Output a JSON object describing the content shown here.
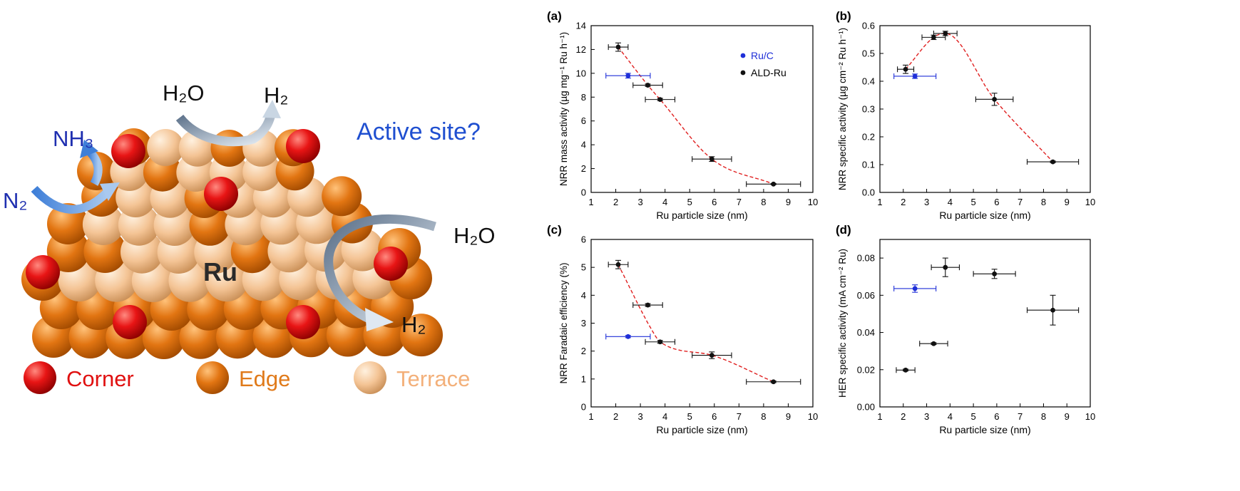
{
  "illustration": {
    "center_label": "Ru",
    "question": "Active site?",
    "species": {
      "nh3": "NH₃",
      "n2": "N₂",
      "h2o_top": "H₂O",
      "h2_top": "H₂",
      "h2o_right": "H₂O",
      "h2_right": "H₂"
    },
    "legend": [
      {
        "label": "Corner",
        "color": "#e01010"
      },
      {
        "label": "Edge",
        "color": "#e07a1a"
      },
      {
        "label": "Terrace",
        "color": "#f3c08e"
      }
    ]
  },
  "colors": {
    "ald": "#111111",
    "ruc": "#1f2fd8",
    "fit": "#e02020",
    "question": "#1f4fd0",
    "reactant": "#1f2fb0"
  },
  "chart_data": [
    {
      "panel": "(a)",
      "type": "scatter",
      "xlabel": "Ru particle size (nm)",
      "ylabel": "NRR mass activity (µg mg⁻¹ Ru h⁻¹)",
      "xlim": [
        1,
        10
      ],
      "ylim": [
        0,
        14
      ],
      "xticks": [
        "1",
        "2",
        "3",
        "4",
        "5",
        "6",
        "7",
        "8",
        "9",
        "10"
      ],
      "yticks": [
        "0",
        "2",
        "4",
        "6",
        "8",
        "10",
        "12",
        "14"
      ],
      "legend": [
        "Ru/C",
        "ALD-Ru"
      ],
      "series": [
        {
          "name": "ALD-Ru",
          "x": [
            2.1,
            3.3,
            3.8,
            5.9,
            8.4
          ],
          "y": [
            12.2,
            9.0,
            7.8,
            2.8,
            0.7
          ],
          "xerr": [
            0.4,
            0.6,
            0.6,
            0.8,
            1.1
          ],
          "yerr": [
            0.35,
            0.1,
            0.1,
            0.2,
            0.05
          ]
        },
        {
          "name": "Ru/C",
          "x": [
            2.5
          ],
          "y": [
            9.8
          ],
          "xerr": [
            0.9
          ],
          "yerr": [
            0.2
          ]
        }
      ],
      "fit": {
        "x": [
          2.1,
          3.3,
          3.8,
          5.9,
          8.4
        ],
        "y": [
          12.2,
          9.0,
          7.8,
          2.8,
          0.7
        ]
      }
    },
    {
      "panel": "(b)",
      "type": "scatter",
      "xlabel": "Ru particle size (nm)",
      "ylabel": "NRR specific activity (µg cm⁻² Ru h⁻¹)",
      "xlim": [
        1,
        10
      ],
      "ylim": [
        0,
        0.6
      ],
      "xticks": [
        "1",
        "2",
        "3",
        "4",
        "5",
        "6",
        "7",
        "8",
        "9",
        "10"
      ],
      "yticks": [
        "0.0",
        "0.1",
        "0.2",
        "0.3",
        "0.4",
        "0.5",
        "0.6"
      ],
      "series": [
        {
          "name": "ALD-Ru",
          "x": [
            2.1,
            3.3,
            3.8,
            5.9,
            8.4
          ],
          "y": [
            0.443,
            0.558,
            0.572,
            0.335,
            0.11
          ],
          "xerr": [
            0.35,
            0.5,
            0.5,
            0.8,
            1.1
          ],
          "yerr": [
            0.015,
            0.008,
            0.008,
            0.022,
            0.003
          ]
        },
        {
          "name": "Ru/C",
          "x": [
            2.5
          ],
          "y": [
            0.418
          ],
          "xerr": [
            0.9
          ],
          "yerr": [
            0.008
          ]
        }
      ],
      "fit": {
        "x": [
          2.1,
          3.3,
          3.8,
          5.9,
          8.4
        ],
        "y": [
          0.443,
          0.558,
          0.572,
          0.335,
          0.11
        ]
      }
    },
    {
      "panel": "(c)",
      "type": "scatter",
      "xlabel": "Ru particle size (nm)",
      "ylabel": "NRR Faradaic efficiency (%)",
      "xlim": [
        1,
        10
      ],
      "ylim": [
        0,
        6
      ],
      "xticks": [
        "1",
        "2",
        "3",
        "4",
        "5",
        "6",
        "7",
        "8",
        "9",
        "10"
      ],
      "yticks": [
        "0",
        "1",
        "2",
        "3",
        "4",
        "5",
        "6"
      ],
      "series": [
        {
          "name": "ALD-Ru",
          "x": [
            2.1,
            3.3,
            3.8,
            5.9,
            8.4
          ],
          "y": [
            5.1,
            3.65,
            2.33,
            1.85,
            0.9
          ],
          "xerr": [
            0.4,
            0.6,
            0.6,
            0.8,
            1.1
          ],
          "yerr": [
            0.15,
            0.05,
            0.05,
            0.12,
            0.03
          ]
        },
        {
          "name": "Ru/C",
          "x": [
            2.5
          ],
          "y": [
            2.52
          ],
          "xerr": [
            0.9
          ],
          "yerr": [
            0.04
          ]
        }
      ],
      "fit": {
        "x": [
          2.1,
          3.5,
          3.8,
          5.9,
          8.4
        ],
        "y": [
          5.1,
          2.7,
          2.33,
          1.85,
          0.9
        ]
      }
    },
    {
      "panel": "(d)",
      "type": "scatter",
      "xlabel": "Ru particle size (nm)",
      "ylabel": "HER specific activity (mA cm⁻² Ru)",
      "xlim": [
        1,
        10
      ],
      "ylim": [
        0,
        0.09
      ],
      "xticks": [
        "1",
        "2",
        "3",
        "4",
        "5",
        "6",
        "7",
        "8",
        "9",
        "10"
      ],
      "yticks": [
        "0.00",
        "0.02",
        "0.04",
        "0.06",
        "0.08"
      ],
      "series": [
        {
          "name": "ALD-Ru",
          "x": [
            2.1,
            3.3,
            3.8,
            5.9,
            8.4
          ],
          "y": [
            0.0198,
            0.034,
            0.075,
            0.0715,
            0.052
          ],
          "xerr": [
            0.4,
            0.6,
            0.6,
            0.9,
            1.1
          ],
          "yerr": [
            0.0005,
            0.0005,
            0.005,
            0.0025,
            0.008
          ]
        },
        {
          "name": "Ru/C",
          "x": [
            2.5
          ],
          "y": [
            0.0636
          ],
          "xerr": [
            0.9
          ],
          "yerr": [
            0.002
          ]
        }
      ],
      "fit": null
    }
  ]
}
